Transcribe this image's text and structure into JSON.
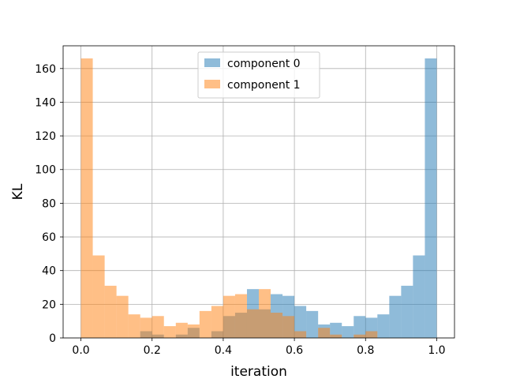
{
  "chart_data": {
    "type": "histogram",
    "xlabel": "iteration",
    "ylabel": "KL",
    "xlim": [
      -0.05,
      1.05
    ],
    "ylim": [
      0,
      173.5
    ],
    "xticks": [
      "0.0",
      "0.2",
      "0.4",
      "0.6",
      "0.8",
      "1.0"
    ],
    "xtick_values": [
      0.0,
      0.2,
      0.4,
      0.6,
      0.8,
      1.0
    ],
    "yticks": [
      "0",
      "20",
      "40",
      "60",
      "80",
      "100",
      "120",
      "140",
      "160"
    ],
    "ytick_values": [
      0,
      20,
      40,
      60,
      80,
      100,
      120,
      140,
      160
    ],
    "grid": true,
    "legend_position": "upper center",
    "bin_edges": [
      0.0,
      0.0333,
      0.0667,
      0.1,
      0.1333,
      0.1667,
      0.2,
      0.2333,
      0.2667,
      0.3,
      0.3333,
      0.3667,
      0.4,
      0.4333,
      0.4667,
      0.5,
      0.5333,
      0.5667,
      0.6,
      0.6333,
      0.6667,
      0.7,
      0.7333,
      0.7667,
      0.8,
      0.8333,
      0.8667,
      0.9,
      0.9333,
      0.9667,
      1.0
    ],
    "series": [
      {
        "name": "component 0",
        "color": "#1f77b4",
        "alpha": 0.5,
        "values": [
          0,
          0,
          0,
          0,
          0,
          4,
          2,
          0,
          2,
          6,
          0,
          4,
          13,
          15,
          29,
          17,
          26,
          25,
          19,
          16,
          8,
          9,
          7,
          13,
          12,
          14,
          25,
          31,
          49,
          166
        ]
      },
      {
        "name": "component 1",
        "color": "#ff7f0e",
        "alpha": 0.5,
        "values": [
          166,
          49,
          31,
          25,
          14,
          12,
          13,
          7,
          9,
          8,
          16,
          19,
          25,
          26,
          17,
          29,
          15,
          13,
          4,
          0,
          6,
          2,
          0,
          2,
          4,
          0,
          0,
          0,
          0,
          0
        ]
      }
    ]
  }
}
